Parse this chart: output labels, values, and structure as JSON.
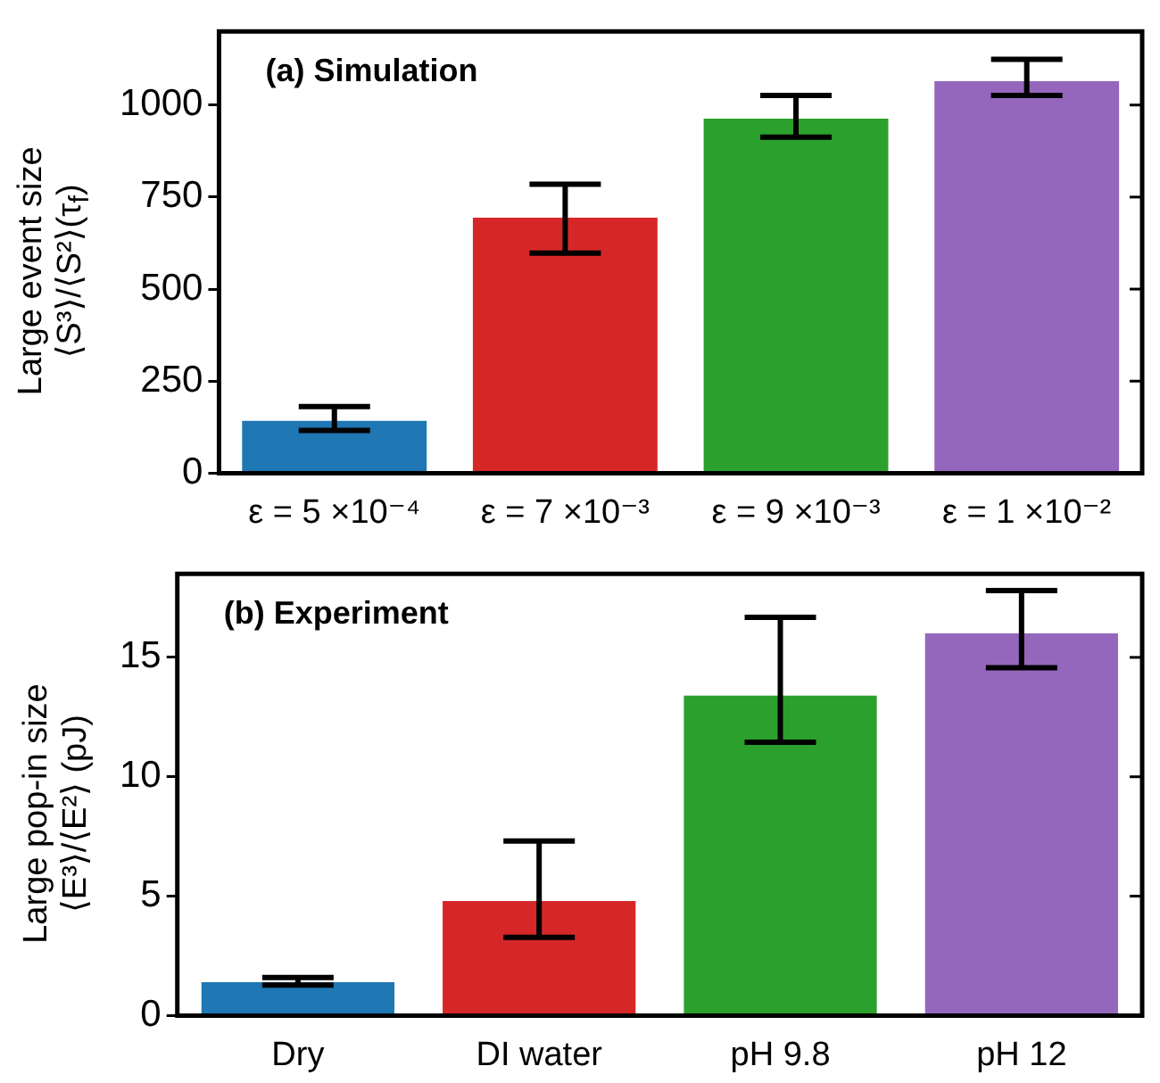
{
  "chart_data": [
    {
      "type": "bar",
      "title": "(a) Simulation",
      "ylabel": "Large event size\n⟨S³⟩/⟨S²⟩(τ$_{f}$)",
      "categories": [
        "ε = 5 ×10⁻⁴",
        "ε = 7 ×10⁻³",
        "ε = 9 ×10⁻³",
        "ε = 1 ×10⁻²"
      ],
      "values": [
        142,
        694,
        963,
        1065
      ],
      "colors": [
        "#1f77b4",
        "#d62728",
        "#2ca02c",
        "#9467bd"
      ],
      "errors": [
        [
          116,
          181
        ],
        [
          598,
          785
        ],
        [
          913,
          1026
        ],
        [
          1026,
          1124
        ]
      ],
      "ylim": [
        0,
        1200
      ],
      "yticks": [
        0,
        250,
        500,
        750,
        1000
      ]
    },
    {
      "type": "bar",
      "title": "(b) Experiment",
      "ylabel": "Large pop-in size\n⟨E³⟩/⟨E²⟩ (pJ)",
      "categories": [
        "Dry",
        "DI water",
        "pH 9.8",
        "pH 12"
      ],
      "values": [
        1.4,
        4.8,
        13.4,
        16.0
      ],
      "colors": [
        "#1f77b4",
        "#d62728",
        "#2ca02c",
        "#9467bd"
      ],
      "errors": [
        [
          1.28,
          1.59
        ],
        [
          3.27,
          7.31
        ],
        [
          11.45,
          16.68
        ],
        [
          14.57,
          17.8
        ]
      ],
      "ylim": [
        0,
        18.5
      ],
      "yticks": [
        0,
        5,
        10,
        15
      ]
    }
  ]
}
